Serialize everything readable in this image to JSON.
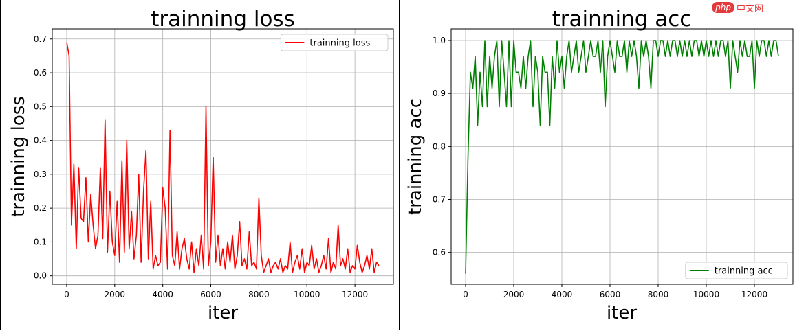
{
  "chart_data": [
    {
      "type": "line",
      "title": "trainning loss",
      "xlabel": "iter",
      "ylabel": "trainning loss",
      "xlim": [
        -600,
        13600
      ],
      "ylim": [
        -0.025,
        0.73
      ],
      "xticks": [
        0,
        2000,
        4000,
        6000,
        8000,
        10000,
        12000
      ],
      "yticks": [
        0.0,
        0.1,
        0.2,
        0.3,
        0.4,
        0.5,
        0.6,
        0.7
      ],
      "grid": true,
      "legend": "top-right",
      "series": [
        {
          "name": "trainning loss",
          "color": "#ff0000",
          "x": [
            0,
            100,
            200,
            300,
            400,
            500,
            600,
            700,
            800,
            900,
            1000,
            1100,
            1200,
            1300,
            1400,
            1500,
            1600,
            1700,
            1800,
            1900,
            2000,
            2100,
            2200,
            2300,
            2400,
            2500,
            2600,
            2700,
            2800,
            2900,
            3000,
            3100,
            3200,
            3300,
            3400,
            3500,
            3600,
            3700,
            3800,
            3900,
            4000,
            4100,
            4200,
            4300,
            4400,
            4500,
            4600,
            4700,
            4800,
            4900,
            5000,
            5100,
            5200,
            5300,
            5400,
            5500,
            5600,
            5700,
            5800,
            5900,
            6000,
            6100,
            6200,
            6300,
            6400,
            6500,
            6600,
            6700,
            6800,
            6900,
            7000,
            7100,
            7200,
            7300,
            7400,
            7500,
            7600,
            7700,
            7800,
            7900,
            8000,
            8100,
            8200,
            8300,
            8400,
            8500,
            8600,
            8700,
            8800,
            8900,
            9000,
            9100,
            9200,
            9300,
            9400,
            9500,
            9600,
            9700,
            9800,
            9900,
            10000,
            10100,
            10200,
            10300,
            10400,
            10500,
            10600,
            10700,
            10800,
            10900,
            11000,
            11100,
            11200,
            11300,
            11400,
            11500,
            11600,
            11700,
            11800,
            11900,
            12000,
            12100,
            12200,
            12300,
            12400,
            12500,
            12600,
            12700,
            12800,
            12900,
            13000
          ],
          "values": [
            0.69,
            0.65,
            0.15,
            0.33,
            0.08,
            0.32,
            0.17,
            0.16,
            0.29,
            0.1,
            0.24,
            0.15,
            0.08,
            0.12,
            0.32,
            0.11,
            0.46,
            0.07,
            0.25,
            0.1,
            0.06,
            0.22,
            0.04,
            0.34,
            0.07,
            0.4,
            0.08,
            0.19,
            0.05,
            0.12,
            0.3,
            0.04,
            0.25,
            0.37,
            0.05,
            0.22,
            0.02,
            0.06,
            0.03,
            0.04,
            0.26,
            0.2,
            0.02,
            0.43,
            0.06,
            0.03,
            0.13,
            0.02,
            0.08,
            0.11,
            0.05,
            0.02,
            0.1,
            0.01,
            0.08,
            0.03,
            0.12,
            0.02,
            0.5,
            0.03,
            0.1,
            0.35,
            0.04,
            0.12,
            0.03,
            0.08,
            0.02,
            0.1,
            0.04,
            0.12,
            0.02,
            0.06,
            0.16,
            0.03,
            0.05,
            0.02,
            0.13,
            0.03,
            0.04,
            0.02,
            0.23,
            0.06,
            0.01,
            0.03,
            0.05,
            0.01,
            0.03,
            0.04,
            0.02,
            0.05,
            0.01,
            0.03,
            0.02,
            0.1,
            0.01,
            0.04,
            0.06,
            0.02,
            0.08,
            0.01,
            0.04,
            0.03,
            0.09,
            0.02,
            0.05,
            0.01,
            0.03,
            0.06,
            0.02,
            0.11,
            0.01,
            0.04,
            0.02,
            0.15,
            0.03,
            0.05,
            0.02,
            0.08,
            0.01,
            0.03,
            0.02,
            0.09,
            0.04,
            0.01,
            0.03,
            0.06,
            0.02,
            0.08,
            0.01,
            0.04,
            0.03
          ]
        }
      ]
    },
    {
      "type": "line",
      "title": "trainning acc",
      "xlabel": "iter",
      "ylabel": "trainning acc",
      "xlim": [
        -600,
        13600
      ],
      "ylim": [
        0.54,
        1.022
      ],
      "xticks": [
        0,
        2000,
        4000,
        6000,
        8000,
        10000,
        12000
      ],
      "yticks": [
        0.6,
        0.7,
        0.8,
        0.9,
        1.0
      ],
      "grid": true,
      "legend": "bottom-right",
      "series": [
        {
          "name": "trainning acc",
          "color": "#008000",
          "x": [
            0,
            100,
            200,
            300,
            400,
            500,
            600,
            700,
            800,
            900,
            1000,
            1100,
            1200,
            1300,
            1400,
            1500,
            1600,
            1700,
            1800,
            1900,
            2000,
            2100,
            2200,
            2300,
            2400,
            2500,
            2600,
            2700,
            2800,
            2900,
            3000,
            3100,
            3200,
            3300,
            3400,
            3500,
            3600,
            3700,
            3800,
            3900,
            4000,
            4100,
            4200,
            4300,
            4400,
            4500,
            4600,
            4700,
            4800,
            4900,
            5000,
            5100,
            5200,
            5300,
            5400,
            5500,
            5600,
            5700,
            5800,
            5900,
            6000,
            6100,
            6200,
            6300,
            6400,
            6500,
            6600,
            6700,
            6800,
            6900,
            7000,
            7100,
            7200,
            7300,
            7400,
            7500,
            7600,
            7700,
            7800,
            7900,
            8000,
            8100,
            8200,
            8300,
            8400,
            8500,
            8600,
            8700,
            8800,
            8900,
            9000,
            9100,
            9200,
            9300,
            9400,
            9500,
            9600,
            9700,
            9800,
            9900,
            10000,
            10100,
            10200,
            10300,
            10400,
            10500,
            10600,
            10700,
            10800,
            10900,
            11000,
            11100,
            11200,
            11300,
            11400,
            11500,
            11600,
            11700,
            11800,
            11900,
            12000,
            12100,
            12200,
            12300,
            12400,
            12500,
            12600,
            12700,
            12800,
            12900,
            13000
          ],
          "values": [
            0.56,
            0.78,
            0.94,
            0.91,
            0.97,
            0.84,
            0.94,
            0.875,
            1.0,
            0.875,
            0.97,
            0.91,
            0.97,
            1.0,
            0.875,
            1.0,
            0.94,
            0.875,
            1.0,
            0.875,
            1.0,
            0.94,
            0.94,
            0.91,
            0.97,
            0.91,
            0.97,
            1.0,
            0.875,
            0.97,
            0.94,
            0.84,
            0.97,
            0.94,
            0.94,
            0.84,
            0.97,
            0.91,
            1.0,
            0.94,
            0.97,
            0.91,
            0.97,
            1.0,
            0.94,
            0.97,
            1.0,
            0.94,
            0.97,
            1.0,
            0.94,
            0.97,
            1.0,
            0.97,
            0.97,
            1.0,
            0.94,
            1.0,
            0.875,
            0.97,
            1.0,
            0.97,
            0.94,
            1.0,
            0.97,
            0.97,
            1.0,
            0.94,
            1.0,
            0.97,
            1.0,
            0.97,
            0.91,
            1.0,
            0.97,
            1.0,
            0.97,
            0.91,
            1.0,
            1.0,
            0.97,
            1.0,
            1.0,
            0.97,
            1.0,
            0.97,
            1.0,
            1.0,
            0.97,
            1.0,
            0.97,
            1.0,
            0.97,
            1.0,
            0.97,
            1.0,
            1.0,
            0.97,
            1.0,
            0.97,
            1.0,
            0.97,
            1.0,
            0.97,
            1.0,
            0.97,
            1.0,
            1.0,
            0.97,
            1.0,
            0.91,
            1.0,
            0.97,
            0.94,
            1.0,
            0.97,
            1.0,
            0.97,
            0.97,
            1.0,
            0.91,
            1.0,
            0.97,
            1.0,
            1.0,
            0.97,
            1.0,
            0.97,
            1.0,
            1.0,
            0.97
          ]
        }
      ]
    }
  ],
  "watermark": {
    "badge": "php",
    "text": "中文网"
  }
}
